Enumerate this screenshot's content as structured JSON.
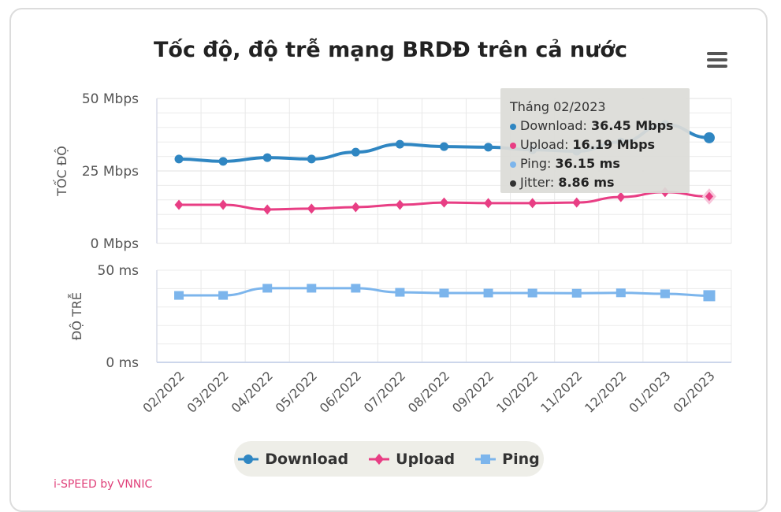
{
  "chart_data": {
    "type": "line",
    "title": "Tốc độ, độ trễ mạng BRDĐ trên cả nước",
    "categories": [
      "02/2022",
      "03/2022",
      "04/2022",
      "05/2022",
      "06/2022",
      "07/2022",
      "08/2022",
      "09/2022",
      "10/2022",
      "11/2022",
      "12/2022",
      "01/2023",
      "02/2023"
    ],
    "axes": [
      {
        "id": "speed",
        "label": "TỐC ĐỘ",
        "ylim": [
          0,
          50
        ],
        "ticks": [
          "0 Mbps",
          "25 Mbps",
          "50 Mbps"
        ],
        "tick_values": [
          0,
          25,
          50
        ]
      },
      {
        "id": "latency",
        "label": "ĐỘ TRỄ",
        "ylim": [
          0,
          50
        ],
        "ticks": [
          "0 ms",
          "50 ms"
        ],
        "tick_values": [
          0,
          50
        ]
      }
    ],
    "series": [
      {
        "name": "Download",
        "axis": "speed",
        "color": "#2f86c2",
        "marker": "circle",
        "values": [
          29.1,
          28.3,
          29.6,
          29.1,
          31.5,
          34.2,
          33.4,
          33.2,
          32.3,
          31.8,
          35.0,
          41.0,
          36.45
        ]
      },
      {
        "name": "Upload",
        "axis": "speed",
        "color": "#e83e84",
        "marker": "diamond",
        "values": [
          13.3,
          13.3,
          11.7,
          12.0,
          12.5,
          13.3,
          14.1,
          13.9,
          13.9,
          14.1,
          16.0,
          17.7,
          16.19
        ]
      },
      {
        "name": "Ping",
        "axis": "latency",
        "color": "#7cb5ec",
        "marker": "square",
        "values": [
          36.3,
          36.3,
          40.2,
          40.2,
          40.2,
          38.0,
          37.6,
          37.6,
          37.6,
          37.5,
          37.7,
          37.2,
          36.15
        ]
      }
    ],
    "grid": true,
    "legend_position": "bottom"
  },
  "tooltip": {
    "header": "Tháng 02/2023",
    "rows": [
      {
        "label": "Download: ",
        "value": "36.45 Mbps",
        "color": "#2f86c2"
      },
      {
        "label": "Upload: ",
        "value": "16.19 Mbps",
        "color": "#e83e84"
      },
      {
        "label": "Ping: ",
        "value": "36.15 ms",
        "color": "#7cb5ec"
      },
      {
        "label": "Jitter: ",
        "value": "8.86 ms",
        "color": "#333333"
      }
    ]
  },
  "menu_icon": "hamburger-icon",
  "footer": "i-SPEED by VNNIC"
}
